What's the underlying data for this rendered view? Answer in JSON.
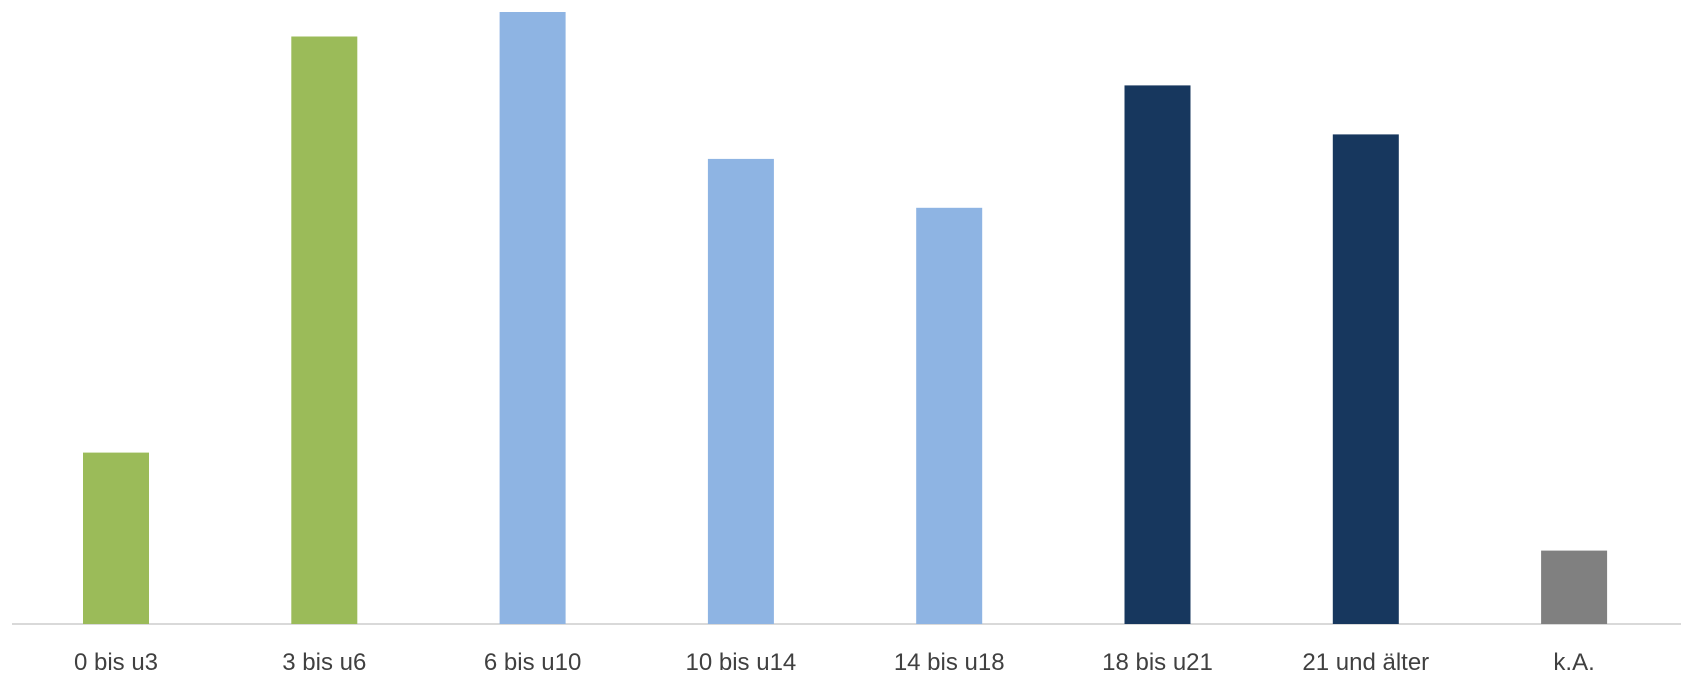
{
  "chart_data": {
    "type": "bar",
    "title": "",
    "xlabel": "",
    "ylabel": "",
    "ylim": [
      0,
      25
    ],
    "grid": false,
    "legend": "none",
    "categories": [
      "0 bis u3",
      "3 bis u6",
      "6 bis u10",
      "10 bis u14",
      "14 bis u18",
      "18 bis u21",
      "21 und älter",
      "k.A."
    ],
    "values": [
      7,
      24,
      25,
      19,
      17,
      22,
      20,
      3
    ],
    "colors": [
      "#9bbb59",
      "#9bbb59",
      "#8eb4e3",
      "#8eb4e3",
      "#8eb4e3",
      "#17375e",
      "#17375e",
      "#808080"
    ]
  }
}
